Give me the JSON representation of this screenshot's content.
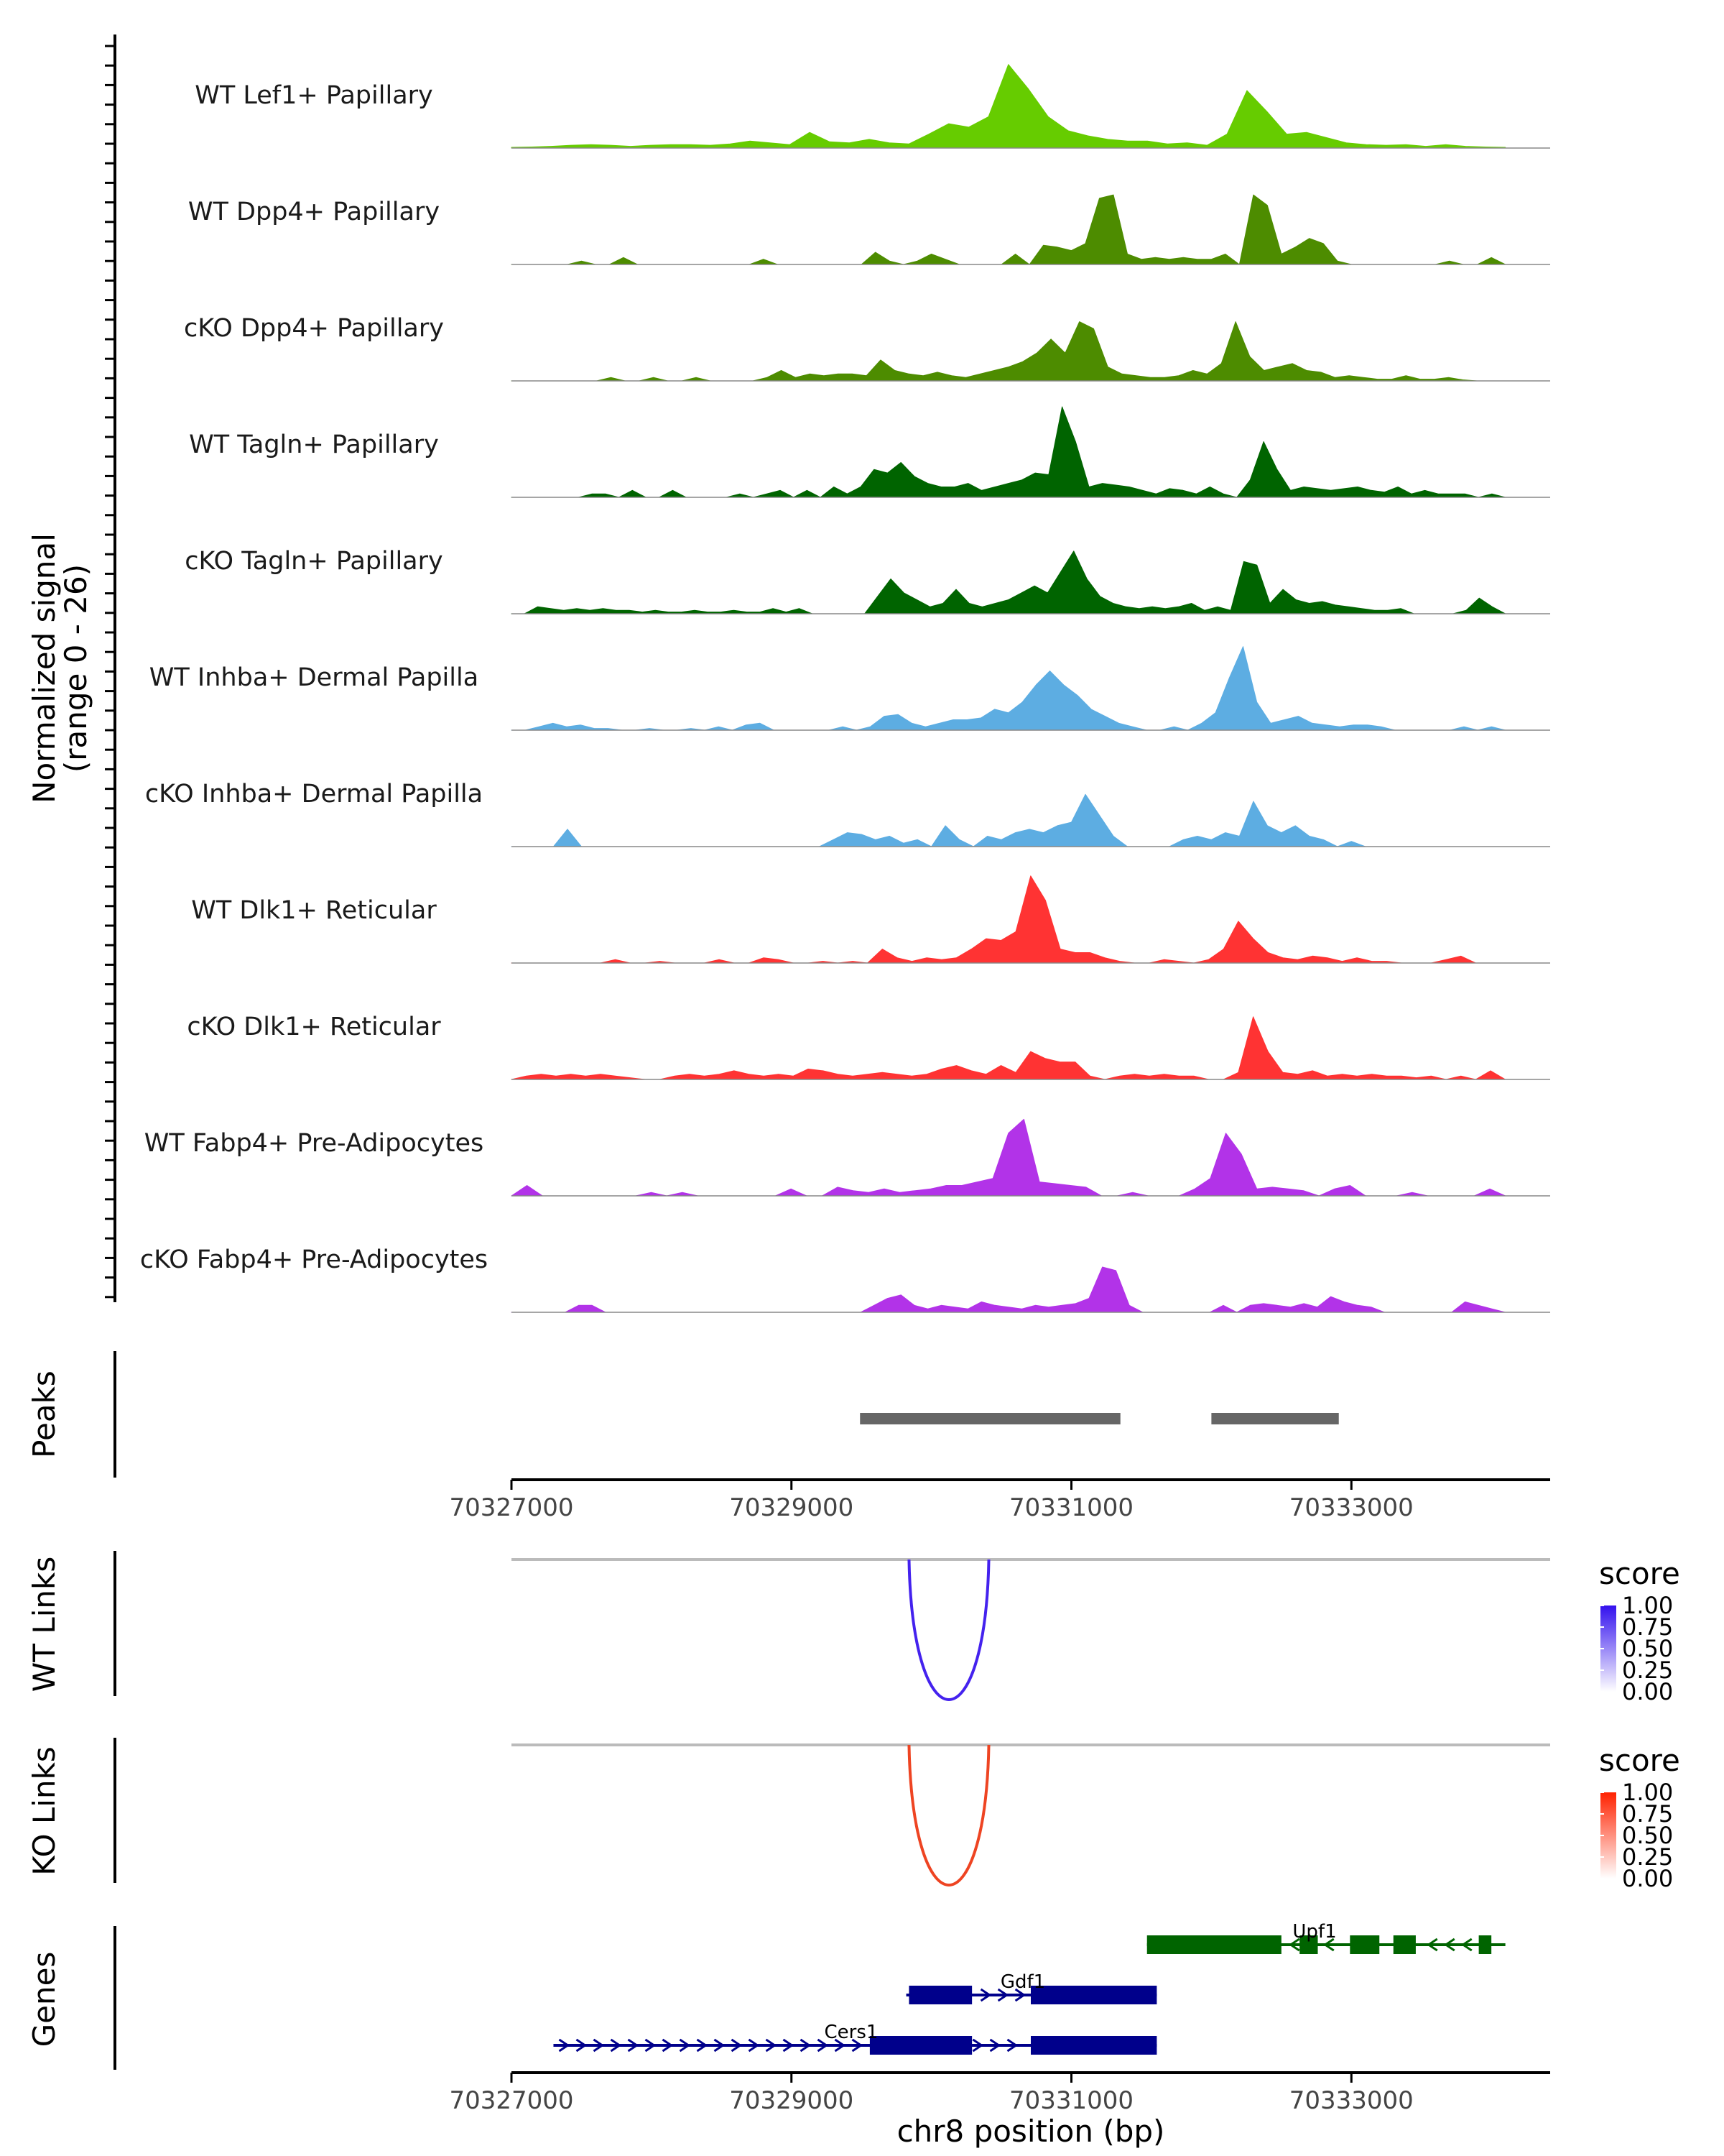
{
  "chart_data": {
    "type": "area",
    "title": "",
    "xlabel": "chr8 position (bp)",
    "xlim": [
      70327000,
      70334420
    ],
    "x_ticks": [
      70327000,
      70329000,
      70331000,
      70333000
    ],
    "x_tick_labels": [
      "70327000",
      "70329000",
      "70331000",
      "70333000"
    ],
    "coverage": {
      "ylabel": "Normalized signal",
      "ylabel_range": "(range 0 - 26)",
      "ylim": [
        0,
        26
      ],
      "x_start": 70327000,
      "x_end": 70334100,
      "tracks": [
        {
          "name": "WT Lef1+ Papillary",
          "color": "#66CC00",
          "profile": [
            0.2,
            0.3,
            0.5,
            0.8,
            1.0,
            0.8,
            0.5,
            0.8,
            1.0,
            1.0,
            0.8,
            1.2,
            2.0,
            1.5,
            1.0,
            4.5,
            1.8,
            1.5,
            2.5,
            1.5,
            1.2,
            4.0,
            7.0,
            6.0,
            9.0,
            24.0,
            17.0,
            9.0,
            5.0,
            3.5,
            2.5,
            2.0,
            2.0,
            1.2,
            1.5,
            0.8,
            4.0,
            16.5,
            10.5,
            4.0,
            4.5,
            3.0,
            1.5,
            1.0,
            0.8,
            1.0,
            0.5,
            1.0,
            0.5,
            0.3,
            0.2
          ]
        },
        {
          "name": "WT Dpp4+ Papillary",
          "color": "#4D8C00",
          "profile": [
            0.0,
            0.0,
            0.0,
            0.0,
            0.0,
            1.0,
            0.0,
            0.0,
            2.0,
            0.0,
            0.0,
            0.0,
            0.0,
            0.0,
            0.0,
            0.0,
            0.0,
            0.0,
            1.5,
            0.0,
            0.0,
            0.0,
            0.0,
            0.0,
            0.0,
            0.0,
            3.5,
            1.0,
            0.0,
            1.0,
            3.0,
            1.5,
            0.0,
            0.0,
            0.0,
            0.0,
            3.0,
            0.0,
            5.5,
            5.0,
            4.0,
            6.0,
            19.0,
            20.0,
            3.0,
            1.5,
            2.0,
            1.5,
            2.0,
            1.5,
            1.5,
            3.0,
            0.0,
            20.0,
            17.0,
            3.0,
            5.0,
            7.5,
            6.0,
            1.0,
            0.0,
            0.0,
            0.0,
            0.0,
            0.0,
            0.0,
            0.0,
            1.0,
            0.0,
            0.0,
            2.0,
            0.0
          ]
        },
        {
          "name": "cKO Dpp4+ Papillary",
          "color": "#4D8C00",
          "profile": [
            0.0,
            0.0,
            0.0,
            0.0,
            0.0,
            0.0,
            0.0,
            1.0,
            0.0,
            0.0,
            1.0,
            0.0,
            0.0,
            1.0,
            0.0,
            0.0,
            0.0,
            0.0,
            1.0,
            3.0,
            1.0,
            2.0,
            1.5,
            2.0,
            2.0,
            1.5,
            6.0,
            3.0,
            2.0,
            1.5,
            2.5,
            1.5,
            1.0,
            2.0,
            3.0,
            4.0,
            5.5,
            8.0,
            12.0,
            8.0,
            17.0,
            15.0,
            4.0,
            2.0,
            1.5,
            1.0,
            1.0,
            1.5,
            3.0,
            2.0,
            5.0,
            17.0,
            7.0,
            3.0,
            4.0,
            5.0,
            3.0,
            2.5,
            1.0,
            1.5,
            1.0,
            0.5,
            0.5,
            1.5,
            0.5,
            0.5,
            1.0,
            0.3,
            0.0,
            0.0,
            0.0
          ]
        },
        {
          "name": "WT Tagln+ Papillary",
          "color": "#006400",
          "profile": [
            0.0,
            0.0,
            0.0,
            0.0,
            0.0,
            0.0,
            1.0,
            1.0,
            0.0,
            2.0,
            0.0,
            0.0,
            2.0,
            0.0,
            0.0,
            0.0,
            0.0,
            1.0,
            0.0,
            1.0,
            2.0,
            0.0,
            2.0,
            0.0,
            3.0,
            1.0,
            3.0,
            8.0,
            7.0,
            10.0,
            6.0,
            4.0,
            3.0,
            3.0,
            4.0,
            2.0,
            3.0,
            4.0,
            5.0,
            7.0,
            6.5,
            26.0,
            16.0,
            3.0,
            4.0,
            3.5,
            3.0,
            2.0,
            1.0,
            2.5,
            2.0,
            1.0,
            3.0,
            1.0,
            0.0,
            5.0,
            16.0,
            8.0,
            2.0,
            3.0,
            2.5,
            2.0,
            2.5,
            3.0,
            2.0,
            1.5,
            3.0,
            1.0,
            2.0,
            1.0,
            1.0,
            1.0,
            0.0,
            1.0,
            0.0
          ]
        },
        {
          "name": "cKO Tagln+ Papillary",
          "color": "#006400",
          "profile": [
            0.0,
            0.0,
            2.0,
            1.5,
            1.0,
            1.5,
            1.0,
            1.5,
            1.0,
            1.0,
            0.5,
            1.0,
            0.5,
            0.5,
            1.0,
            0.5,
            0.5,
            1.0,
            0.5,
            0.5,
            1.5,
            0.5,
            1.5,
            0.0,
            0.0,
            0.0,
            0.0,
            0.0,
            5.0,
            10.0,
            6.0,
            4.0,
            2.0,
            3.0,
            7.0,
            3.0,
            2.0,
            3.0,
            4.0,
            6.0,
            8.0,
            6.0,
            12.0,
            18.0,
            10.0,
            5.0,
            3.0,
            2.0,
            1.5,
            2.0,
            1.5,
            2.0,
            3.0,
            1.0,
            2.0,
            1.0,
            15.0,
            14.0,
            3.0,
            7.0,
            4.0,
            3.0,
            3.5,
            2.5,
            2.0,
            1.5,
            1.0,
            1.0,
            1.5,
            0.0,
            0.0,
            0.0,
            0.0,
            1.0,
            4.5,
            2.0,
            0.0
          ]
        },
        {
          "name": "WT Inhba+ Dermal Papilla",
          "color": "#5DADE2",
          "profile": [
            0.0,
            0.0,
            1.0,
            2.0,
            1.0,
            1.5,
            0.5,
            0.5,
            0.0,
            0.0,
            0.5,
            0.0,
            0.0,
            0.5,
            0.0,
            1.0,
            0.0,
            1.5,
            2.0,
            0.0,
            0.0,
            0.0,
            0.0,
            0.0,
            1.0,
            0.0,
            1.0,
            4.0,
            4.5,
            2.0,
            1.0,
            2.0,
            3.0,
            3.0,
            3.5,
            6.0,
            5.0,
            8.0,
            13.0,
            17.0,
            13.0,
            10.0,
            6.0,
            4.0,
            2.0,
            1.0,
            0.0,
            0.0,
            1.0,
            0.0,
            2.0,
            5.0,
            15.0,
            24.0,
            8.0,
            2.0,
            3.0,
            4.0,
            2.0,
            1.5,
            1.0,
            1.5,
            1.5,
            1.0,
            0.0,
            0.0,
            0.0,
            0.0,
            0.0,
            1.0,
            0.0,
            1.0,
            0.0
          ]
        },
        {
          "name": "cKO Inhba+ Dermal Papilla",
          "color": "#5DADE2",
          "profile": [
            0.0,
            0.0,
            0.0,
            0.0,
            5.0,
            0.0,
            0.0,
            0.0,
            0.0,
            0.0,
            0.0,
            0.0,
            0.0,
            0.0,
            0.0,
            0.0,
            0.0,
            0.0,
            0.0,
            0.0,
            0.0,
            0.0,
            0.0,
            2.0,
            4.0,
            3.5,
            2.0,
            3.0,
            1.0,
            2.0,
            0.0,
            6.0,
            2.0,
            0.0,
            3.0,
            2.0,
            4.0,
            5.0,
            4.0,
            6.0,
            7.0,
            15.0,
            9.0,
            3.0,
            0.0,
            0.0,
            0.0,
            0.0,
            2.0,
            3.0,
            2.0,
            4.0,
            3.0,
            13.0,
            6.0,
            4.0,
            6.0,
            3.0,
            2.0,
            0.0,
            1.5,
            0.0,
            0.0,
            0.0,
            0.0,
            0.0,
            0.0,
            0.0,
            0.0,
            0.0,
            0.0,
            0.0
          ]
        },
        {
          "name": "WT Dlk1+ Reticular",
          "color": "#FF3333",
          "profile": [
            0.0,
            0.0,
            0.0,
            0.0,
            0.0,
            0.0,
            0.0,
            1.0,
            0.0,
            0.0,
            0.5,
            0.0,
            0.0,
            0.0,
            1.0,
            0.0,
            0.0,
            1.5,
            1.0,
            0.0,
            0.0,
            0.5,
            0.0,
            0.5,
            0.0,
            4.0,
            1.5,
            0.5,
            1.5,
            1.0,
            1.5,
            4.0,
            7.0,
            6.5,
            9.0,
            25.0,
            18.0,
            4.0,
            3.0,
            3.0,
            1.5,
            0.5,
            0.0,
            0.0,
            1.0,
            0.5,
            0.0,
            1.0,
            4.0,
            12.0,
            7.0,
            3.0,
            1.5,
            1.0,
            2.0,
            1.5,
            0.5,
            1.5,
            0.5,
            0.5,
            0.0,
            0.0,
            0.0,
            1.0,
            2.0,
            0.0,
            0.0,
            0.0
          ]
        },
        {
          "name": "cKO Dlk1+ Reticular",
          "color": "#FF3333",
          "profile": [
            0.0,
            1.0,
            1.5,
            1.0,
            1.5,
            1.0,
            1.5,
            1.0,
            0.5,
            0.0,
            0.0,
            1.0,
            1.5,
            1.0,
            1.5,
            2.5,
            1.5,
            1.0,
            1.5,
            1.0,
            3.0,
            2.5,
            1.5,
            1.0,
            1.5,
            2.0,
            1.5,
            1.0,
            1.5,
            3.0,
            4.0,
            2.5,
            1.5,
            4.0,
            2.0,
            8.0,
            6.0,
            5.0,
            5.0,
            1.0,
            0.0,
            1.0,
            1.5,
            1.0,
            1.5,
            1.0,
            1.0,
            0.0,
            0.0,
            2.0,
            18.0,
            8.0,
            2.0,
            1.5,
            2.5,
            1.0,
            1.5,
            1.0,
            1.5,
            1.0,
            1.0,
            0.5,
            1.0,
            0.0,
            1.0,
            0.0,
            2.5,
            0.0
          ]
        },
        {
          "name": "WT Fabp4+ Pre-Adipocytes",
          "color": "#B233E8",
          "profile": [
            0.0,
            3.0,
            0.0,
            0.0,
            0.0,
            0.0,
            0.0,
            0.0,
            0.0,
            1.0,
            0.0,
            1.0,
            0.0,
            0.0,
            0.0,
            0.0,
            0.0,
            0.0,
            2.0,
            0.0,
            0.0,
            2.5,
            1.5,
            1.0,
            2.0,
            1.0,
            1.5,
            2.0,
            3.0,
            3.0,
            4.0,
            5.0,
            18.0,
            22.0,
            4.0,
            3.5,
            3.0,
            2.5,
            0.0,
            0.0,
            1.0,
            0.0,
            0.0,
            0.0,
            2.0,
            5.0,
            18.0,
            12.0,
            2.0,
            2.5,
            2.0,
            1.5,
            0.0,
            2.0,
            3.0,
            0.0,
            0.0,
            0.0,
            1.0,
            0.0,
            0.0,
            0.0,
            0.0,
            2.0,
            0.0
          ]
        },
        {
          "name": "cKO Fabp4+ Pre-Adipocytes",
          "color": "#B233E8",
          "profile": [
            0.0,
            0.0,
            0.0,
            0.0,
            0.0,
            2.0,
            2.0,
            0.0,
            0.0,
            0.0,
            0.0,
            0.0,
            0.0,
            0.0,
            0.0,
            0.0,
            0.0,
            0.0,
            0.0,
            0.0,
            0.0,
            0.0,
            0.0,
            0.0,
            0.0,
            0.0,
            0.0,
            2.0,
            4.0,
            5.0,
            2.0,
            1.0,
            2.0,
            1.5,
            1.0,
            3.0,
            2.0,
            1.5,
            1.0,
            2.0,
            1.5,
            2.0,
            2.5,
            4.0,
            13.0,
            12.0,
            2.0,
            0.0,
            0.0,
            0.0,
            0.0,
            0.0,
            0.0,
            2.0,
            0.0,
            2.0,
            2.5,
            2.0,
            1.5,
            2.5,
            1.5,
            4.5,
            3.0,
            2.0,
            1.5,
            0.0,
            0.0,
            0.0,
            0.0,
            0.0,
            0.0,
            3.0,
            2.0,
            1.0,
            0.0
          ]
        }
      ]
    },
    "peaks": {
      "label": "Peaks",
      "color": "#666666",
      "ranges": [
        [
          70329490,
          70331350
        ],
        [
          70332000,
          70332910
        ]
      ]
    },
    "links": [
      {
        "label": "WT Links",
        "color": "#4422EE",
        "start": 70329840,
        "end": 70330410,
        "score": 1.0,
        "legend_title": "score",
        "legend_ticks": [
          "1.00",
          "0.75",
          "0.50",
          "0.25",
          "0.00"
        ],
        "legend_colors": [
          "#3311EE",
          "#FFFFFF"
        ]
      },
      {
        "label": "KO Links",
        "color": "#EE4422",
        "start": 70329840,
        "end": 70330410,
        "score": 1.0,
        "legend_title": "score",
        "legend_ticks": [
          "1.00",
          "0.75",
          "0.50",
          "0.25",
          "0.00"
        ],
        "legend_colors": [
          "#FF2200",
          "#FFFFFF"
        ]
      }
    ],
    "genes": {
      "label": "Genes",
      "items": [
        {
          "name": "Upf1",
          "strand": "-",
          "color": "#006400",
          "start": 70331540,
          "end": 70334100,
          "exons": [
            [
              70331540,
              70332500
            ],
            [
              70332630,
              70332760
            ],
            [
              70332990,
              70333200
            ],
            [
              70333300,
              70333460
            ],
            [
              70333910,
              70334000
            ]
          ]
        },
        {
          "name": "Gdf1",
          "strand": "+",
          "color": "#00008B",
          "start": 70329820,
          "end": 70331610,
          "exons": [
            [
              70329840,
              70330290
            ],
            [
              70330710,
              70331610
            ]
          ]
        },
        {
          "name": "Cers1",
          "strand": "+",
          "color": "#00008B",
          "start": 70327300,
          "end": 70331610,
          "exons": [
            [
              70329560,
              70330290
            ],
            [
              70330710,
              70331610
            ]
          ]
        }
      ]
    }
  }
}
